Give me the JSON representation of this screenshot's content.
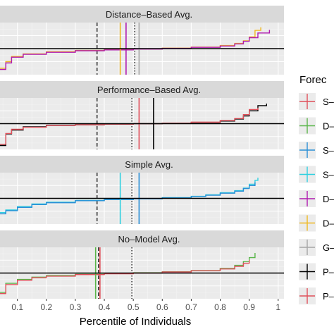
{
  "chart_data": {
    "type": "line",
    "title": "",
    "xlabel": "Percentile of Individuals",
    "ylabel": "",
    "xlim": [
      0.04,
      1.02
    ],
    "x_ticks": [
      0.1,
      0.2,
      0.3,
      0.4,
      0.5,
      0.6,
      0.7,
      0.8,
      0.9,
      1
    ],
    "x_tick_labels": [
      "0.1",
      "0.2",
      "0.3",
      "0.4",
      "0.5",
      "0.6",
      "0.7",
      "0.8",
      "0.9",
      "1"
    ],
    "grid": true,
    "legend": {
      "title": "Forec",
      "position": "right",
      "entries": [
        {
          "label": "S–",
          "color": "#e0505a"
        },
        {
          "label": "D–",
          "color": "#5ab54a"
        },
        {
          "label": "S–",
          "color": "#2a8fd6"
        },
        {
          "label": "S–",
          "color": "#2fd0e0"
        },
        {
          "label": "D–",
          "color": "#b01ab0"
        },
        {
          "label": "D–",
          "color": "#f0b820"
        },
        {
          "label": "G–",
          "color": "#a6a6a6"
        },
        {
          "label": "P–",
          "color": "#000000"
        },
        {
          "label": "P–",
          "color": "#e0505a"
        }
      ]
    },
    "panels": [
      {
        "strip": "Distance–Based Avg.",
        "ylim": [
          -1,
          1
        ],
        "reference_lines": {
          "dashed": 0.375,
          "dotted": 0.505,
          "horizontal": 0
        },
        "marker_lines": [
          {
            "x": 0.455,
            "color": "#f0b820"
          },
          {
            "x": 0.475,
            "color": "#b01ab0"
          },
          {
            "x": 0.52,
            "color": "#a6a6a6"
          }
        ],
        "series": [
          {
            "color": "#f0b820",
            "x": [
              0.04,
              0.06,
              0.08,
              0.12,
              0.2,
              0.3,
              0.4,
              0.5,
              0.6,
              0.7,
              0.8,
              0.85,
              0.88,
              0.9,
              0.92,
              0.94
            ],
            "y": [
              -0.75,
              -0.5,
              -0.3,
              -0.2,
              -0.12,
              -0.07,
              -0.04,
              -0.01,
              0.02,
              0.06,
              0.12,
              0.2,
              0.3,
              0.45,
              0.7,
              0.82
            ]
          },
          {
            "color": "#b01ab0",
            "x": [
              0.04,
              0.06,
              0.08,
              0.12,
              0.2,
              0.3,
              0.4,
              0.5,
              0.6,
              0.7,
              0.8,
              0.85,
              0.88,
              0.9,
              0.93,
              0.97
            ],
            "y": [
              -0.8,
              -0.55,
              -0.33,
              -0.22,
              -0.14,
              -0.08,
              -0.05,
              -0.02,
              0.01,
              0.05,
              0.1,
              0.18,
              0.28,
              0.42,
              0.6,
              0.72
            ]
          }
        ]
      },
      {
        "strip": "Performance–Based Avg.",
        "ylim": [
          -1,
          1
        ],
        "reference_lines": {
          "dashed": 0.375,
          "dotted": 0.495,
          "horizontal": 0
        },
        "marker_lines": [
          {
            "x": 0.52,
            "color": "#e0505a"
          },
          {
            "x": 0.57,
            "color": "#000000"
          }
        ],
        "series": [
          {
            "color": "#000000",
            "x": [
              0.04,
              0.06,
              0.08,
              0.12,
              0.2,
              0.3,
              0.4,
              0.5,
              0.6,
              0.7,
              0.8,
              0.85,
              0.88,
              0.9,
              0.93,
              0.96
            ],
            "y": [
              -0.85,
              -0.4,
              -0.25,
              -0.12,
              -0.06,
              -0.04,
              -0.02,
              0.0,
              0.02,
              0.05,
              0.1,
              0.18,
              0.3,
              0.5,
              0.7,
              0.78
            ]
          },
          {
            "color": "#e0505a",
            "x": [
              0.04,
              0.06,
              0.08,
              0.12,
              0.2,
              0.3,
              0.4,
              0.5,
              0.6,
              0.7,
              0.8,
              0.85,
              0.88,
              0.9,
              0.93
            ],
            "y": [
              -0.8,
              -0.38,
              -0.22,
              -0.14,
              -0.07,
              -0.04,
              -0.02,
              0.0,
              0.02,
              0.06,
              0.12,
              0.2,
              0.35,
              0.55,
              0.62
            ]
          }
        ]
      },
      {
        "strip": "Simple Avg.",
        "ylim": [
          -1,
          1
        ],
        "reference_lines": {
          "dashed": 0.375,
          "dotted": 0.495,
          "horizontal": 0
        },
        "marker_lines": [
          {
            "x": 0.455,
            "color": "#2fd0e0"
          },
          {
            "x": 0.52,
            "color": "#2a8fd6"
          }
        ],
        "series": [
          {
            "color": "#2fd0e0",
            "x": [
              0.04,
              0.06,
              0.1,
              0.15,
              0.2,
              0.3,
              0.4,
              0.5,
              0.6,
              0.7,
              0.75,
              0.8,
              0.85,
              0.88,
              0.9,
              0.92,
              0.93
            ],
            "y": [
              -0.55,
              -0.45,
              -0.32,
              -0.22,
              -0.15,
              -0.08,
              -0.04,
              -0.01,
              0.03,
              0.08,
              0.14,
              0.22,
              0.3,
              0.4,
              0.55,
              0.7,
              0.8
            ]
          },
          {
            "color": "#2a8fd6",
            "x": [
              0.04,
              0.06,
              0.1,
              0.15,
              0.2,
              0.3,
              0.4,
              0.5,
              0.6,
              0.7,
              0.75,
              0.8,
              0.85,
              0.88,
              0.9,
              0.92
            ],
            "y": [
              -0.6,
              -0.48,
              -0.35,
              -0.24,
              -0.17,
              -0.09,
              -0.05,
              -0.02,
              0.02,
              0.07,
              0.12,
              0.2,
              0.28,
              0.38,
              0.5,
              0.62
            ]
          }
        ]
      },
      {
        "strip": "No–Model Avg.",
        "ylim": [
          -1,
          1
        ],
        "reference_lines": {
          "dashed": 0.38,
          "dotted": 0.495,
          "horizontal": 0
        },
        "marker_lines": [
          {
            "x": 0.37,
            "color": "#5ab54a"
          },
          {
            "x": 0.385,
            "color": "#e0505a"
          }
        ],
        "series": [
          {
            "color": "#5ab54a",
            "x": [
              0.04,
              0.06,
              0.1,
              0.15,
              0.2,
              0.3,
              0.4,
              0.5,
              0.6,
              0.7,
              0.8,
              0.85,
              0.88,
              0.9,
              0.92
            ],
            "y": [
              -0.75,
              -0.4,
              -0.25,
              -0.16,
              -0.1,
              -0.05,
              -0.02,
              0.01,
              0.05,
              0.1,
              0.18,
              0.3,
              0.45,
              0.6,
              0.78
            ]
          },
          {
            "color": "#e0505a",
            "x": [
              0.04,
              0.06,
              0.1,
              0.15,
              0.2,
              0.3,
              0.4,
              0.5,
              0.6,
              0.7,
              0.8,
              0.85,
              0.88,
              0.9
            ],
            "y": [
              -0.8,
              -0.45,
              -0.28,
              -0.18,
              -0.12,
              -0.06,
              -0.03,
              0.0,
              0.04,
              0.09,
              0.16,
              0.26,
              0.38,
              0.5
            ]
          }
        ]
      }
    ]
  }
}
